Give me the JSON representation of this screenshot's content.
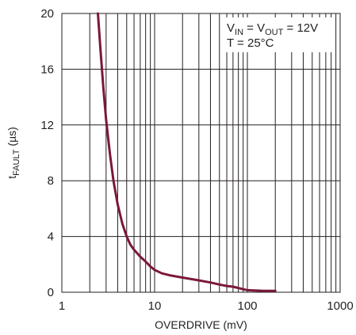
{
  "chart_data": {
    "type": "line",
    "xscale": "log",
    "xlim": [
      1,
      1000
    ],
    "ylim": [
      0,
      20
    ],
    "grid": true,
    "xlabel": "OVERDRIVE (mV)",
    "ylabel": {
      "main": "t",
      "sub": "FAULT",
      "tail": " (µs)"
    },
    "x_ticks": [
      1,
      10,
      100,
      1000
    ],
    "x_tick_labels": [
      "1",
      "10",
      "100",
      "1000"
    ],
    "y_ticks": [
      0,
      4,
      8,
      12,
      16,
      20
    ],
    "y_tick_labels": [
      "0",
      "4",
      "8",
      "12",
      "16",
      "20"
    ],
    "annotation": {
      "line1": {
        "v1": "V",
        "s1": "IN",
        "mid": " = V",
        "s2": "OUT",
        "tail": " = 12V"
      },
      "line2": "T = 25°C"
    },
    "series": [
      {
        "color": "#7b1838",
        "x": [
          2.45,
          2.6,
          2.8,
          3.0,
          3.3,
          3.6,
          4.0,
          4.5,
          5.0,
          5.5,
          6.0,
          7.0,
          8.0,
          9.0,
          10,
          12,
          15,
          20,
          30,
          40,
          50,
          60,
          70,
          80,
          100,
          150,
          200
        ],
        "y": [
          20,
          17.5,
          14.7,
          12.4,
          9.9,
          8.0,
          6.3,
          4.9,
          4.0,
          3.4,
          3.05,
          2.55,
          2.2,
          1.85,
          1.6,
          1.35,
          1.2,
          1.05,
          0.85,
          0.7,
          0.55,
          0.45,
          0.4,
          0.3,
          0.15,
          0.1,
          0.1
        ]
      }
    ]
  }
}
